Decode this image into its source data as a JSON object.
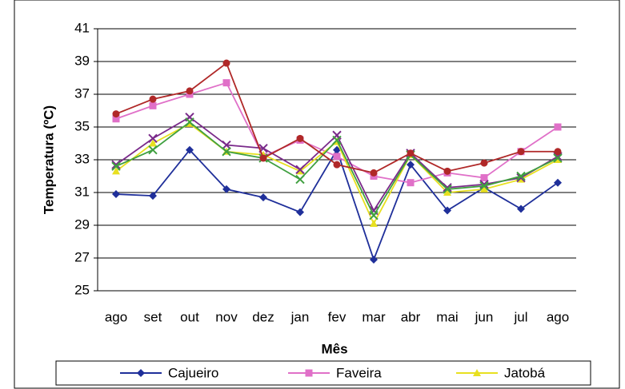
{
  "chart_data": {
    "type": "line",
    "x_label": "Mês",
    "y_label": "Temperatura (ºC)",
    "categories": [
      "ago",
      "set",
      "out",
      "nov",
      "dez",
      "jan",
      "fev",
      "mar",
      "abr",
      "mai",
      "jun",
      "jul",
      "ago"
    ],
    "ylim": [
      25,
      41
    ],
    "yticks": [
      25,
      27,
      29,
      31,
      33,
      35,
      37,
      39,
      41
    ],
    "grid": true,
    "series": [
      {
        "name": "Cajueiro",
        "color": "#1f2f9a",
        "marker": "diamond",
        "values": [
          30.9,
          30.8,
          33.6,
          31.2,
          30.7,
          29.8,
          33.6,
          26.9,
          32.7,
          29.9,
          31.3,
          30.0,
          31.6
        ]
      },
      {
        "name": "Faveira",
        "color": "#e070c8",
        "marker": "square",
        "values": [
          35.5,
          36.3,
          37.0,
          37.7,
          33.2,
          34.2,
          33.2,
          32.0,
          31.6,
          32.2,
          31.9,
          33.5,
          35.0
        ]
      },
      {
        "name": "Jatobá",
        "color": "#e8e020",
        "marker": "triangle",
        "values": [
          32.3,
          34.0,
          35.2,
          33.5,
          33.3,
          32.3,
          34.1,
          29.1,
          33.3,
          31.0,
          31.2,
          31.8,
          33.0
        ]
      },
      {
        "color": "#7a2a8a",
        "marker": "x",
        "values": [
          32.7,
          34.3,
          35.6,
          33.9,
          33.7,
          32.4,
          34.5,
          29.9,
          33.4,
          31.3,
          31.5,
          31.9,
          33.2
        ]
      },
      {
        "color": "#40a040",
        "marker": "x",
        "values": [
          32.6,
          33.6,
          35.3,
          33.5,
          33.1,
          31.8,
          34.2,
          29.6,
          33.3,
          31.2,
          31.4,
          32.0,
          33.1
        ]
      },
      {
        "color": "#b02828",
        "marker": "circle",
        "values": [
          35.8,
          36.7,
          37.2,
          38.9,
          33.1,
          34.3,
          32.7,
          32.2,
          33.4,
          32.3,
          32.8,
          33.5,
          33.5
        ]
      }
    ]
  }
}
